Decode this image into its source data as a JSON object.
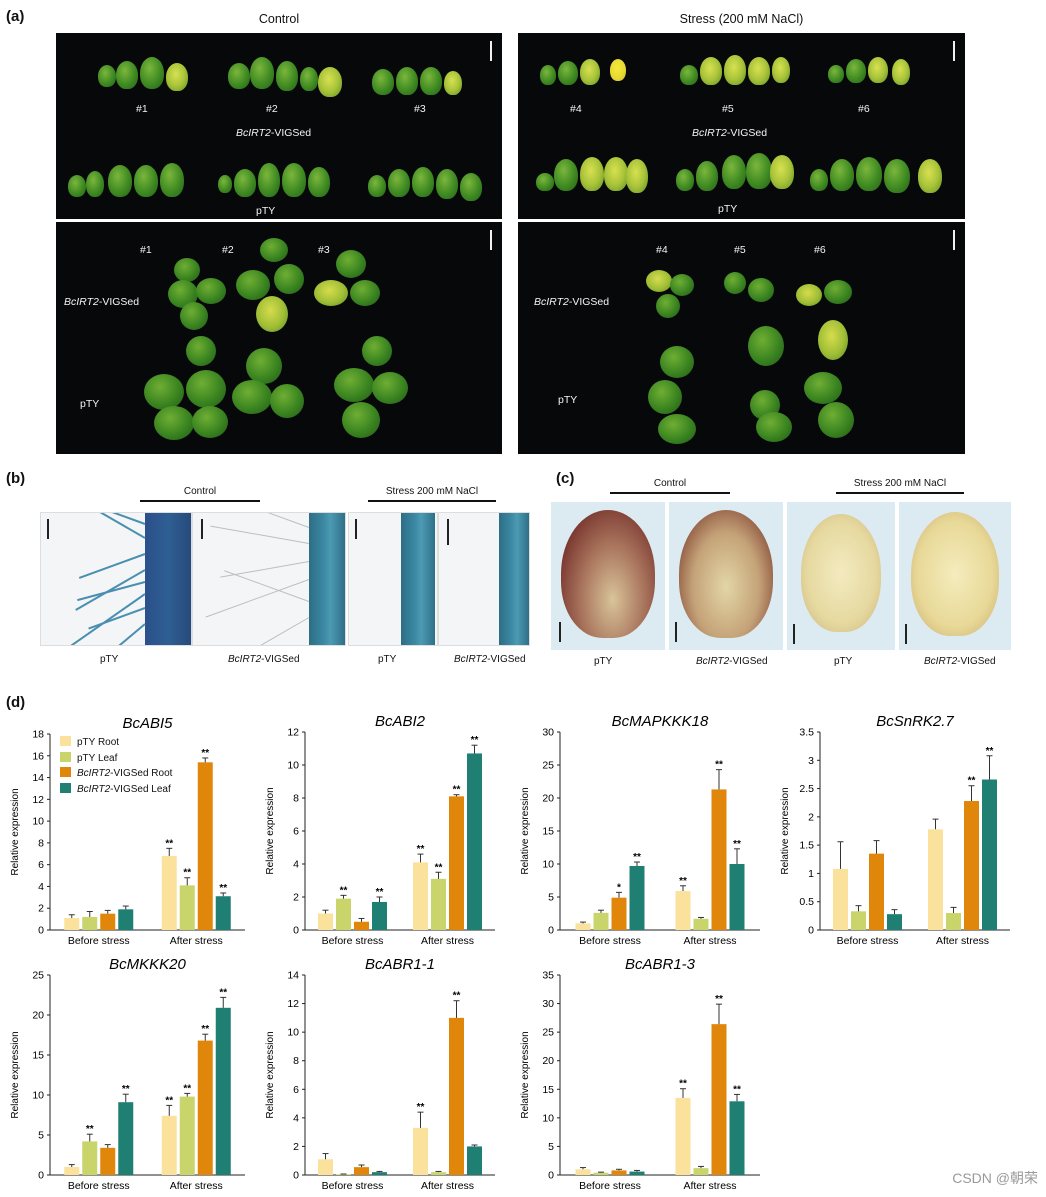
{
  "panel_a": {
    "letter": "(a)",
    "header_control": "Control",
    "header_stress": "Stress (200 mM NaCl)",
    "upper_left_ids": [
      "#1",
      "#2",
      "#3"
    ],
    "upper_right_ids": [
      "#4",
      "#5",
      "#6"
    ],
    "lower_left_ids": [
      "#1",
      "#2",
      "#3"
    ],
    "lower_right_ids": [
      "#4",
      "#5",
      "#6"
    ],
    "vigs_gene": "BcIRT2",
    "vigs_suffix": "-VIGSed",
    "ptY": "pTY"
  },
  "panel_b": {
    "letter": "(b)",
    "header_control": "Control",
    "header_stress": "Stress  200 mM NaCl",
    "labels": [
      "pTY",
      "BcIRT2",
      "-VIGSed",
      "pTY",
      "BcIRT2",
      "-VIGSed"
    ]
  },
  "panel_c": {
    "letter": "(c)",
    "header_control": "Control",
    "header_stress": "Stress  200 mM NaCl",
    "labels": [
      "pTY",
      "BcIRT2",
      "-VIGSed",
      "pTY",
      "BcIRT2",
      "-VIGSed"
    ]
  },
  "panel_d": {
    "letter": "(d)",
    "legend": [
      "pTY Root",
      "pTY Leaf",
      "BcIRT2-VIGSed Root",
      "BcIRT2-VIGSed Leaf"
    ],
    "legend_gene": "BcIRT2",
    "legend_suffix_root": "-VIGSed Root",
    "legend_suffix_leaf": "-VIGSed Leaf",
    "colors": [
      "#fbe29c",
      "#c9d46b",
      "#e0870b",
      "#1f7f73"
    ],
    "watermark": "CSDN @朝荣"
  },
  "chart_data": [
    {
      "type": "bar",
      "title": "BcABI5",
      "ylabel": "Relative expression",
      "categories": [
        "Before stress",
        "After stress"
      ],
      "ylim": [
        0,
        18
      ],
      "yticks": [
        "0",
        "2",
        "4",
        "6",
        "8",
        "10",
        "12",
        "14",
        "16",
        "18"
      ],
      "series": [
        {
          "name": "pTY Root",
          "values": [
            1.1,
            6.8
          ],
          "errors": [
            0.3,
            0.7
          ],
          "sig": [
            "",
            "**"
          ]
        },
        {
          "name": "pTY Leaf",
          "values": [
            1.2,
            4.1
          ],
          "errors": [
            0.5,
            0.7
          ],
          "sig": [
            "",
            "**"
          ]
        },
        {
          "name": "BcIRT2-VIGSed Root",
          "values": [
            1.5,
            15.4
          ],
          "errors": [
            0.3,
            0.4
          ],
          "sig": [
            "",
            "**"
          ]
        },
        {
          "name": "BcIRT2-VIGSed Leaf",
          "values": [
            1.9,
            3.1
          ],
          "errors": [
            0.3,
            0.3
          ],
          "sig": [
            "",
            "**"
          ]
        }
      ]
    },
    {
      "type": "bar",
      "title": "BcABI2",
      "ylabel": "Relative expression",
      "categories": [
        "Before stress",
        "After stress"
      ],
      "ylim": [
        0,
        12
      ],
      "yticks": [
        "0",
        "2",
        "4",
        "6",
        "8",
        "10",
        "12"
      ],
      "series": [
        {
          "name": "pTY Root",
          "values": [
            1.0,
            4.1
          ],
          "errors": [
            0.2,
            0.5
          ],
          "sig": [
            "",
            "**"
          ]
        },
        {
          "name": "pTY Leaf",
          "values": [
            1.9,
            3.1
          ],
          "errors": [
            0.2,
            0.4
          ],
          "sig": [
            "**",
            "**"
          ]
        },
        {
          "name": "BcIRT2-VIGSed Root",
          "values": [
            0.5,
            8.1
          ],
          "errors": [
            0.2,
            0.1
          ],
          "sig": [
            "",
            "**"
          ]
        },
        {
          "name": "BcIRT2-VIGSed Leaf",
          "values": [
            1.7,
            10.7
          ],
          "errors": [
            0.3,
            0.5
          ],
          "sig": [
            "**",
            "**"
          ]
        }
      ]
    },
    {
      "type": "bar",
      "title": "BcMAPKKK18",
      "ylabel": "Relative expression",
      "categories": [
        "Before stress",
        "After stress"
      ],
      "ylim": [
        0,
        30
      ],
      "yticks": [
        "0",
        "5",
        "10",
        "15",
        "20",
        "25",
        "30"
      ],
      "series": [
        {
          "name": "pTY Root",
          "values": [
            1.0,
            5.9
          ],
          "errors": [
            0.2,
            0.8
          ],
          "sig": [
            "",
            "**"
          ]
        },
        {
          "name": "pTY Leaf",
          "values": [
            2.6,
            1.7
          ],
          "errors": [
            0.4,
            0.2
          ],
          "sig": [
            "",
            ""
          ]
        },
        {
          "name": "BcIRT2-VIGSed Root",
          "values": [
            4.9,
            21.3
          ],
          "errors": [
            0.8,
            3.0
          ],
          "sig": [
            "*",
            "**"
          ]
        },
        {
          "name": "BcIRT2-VIGSed Leaf",
          "values": [
            9.7,
            10.0
          ],
          "errors": [
            0.6,
            2.3
          ],
          "sig": [
            "**",
            "**"
          ]
        }
      ]
    },
    {
      "type": "bar",
      "title": "BcSnRK2.7",
      "ylabel": "Relative expression",
      "categories": [
        "Before stress",
        "After stress"
      ],
      "ylim": [
        0,
        3.5
      ],
      "yticks": [
        "0",
        "0.5",
        "1",
        "1.5",
        "2",
        "2.5",
        "3",
        "3.5"
      ],
      "series": [
        {
          "name": "pTY Root",
          "values": [
            1.08,
            1.78
          ],
          "errors": [
            0.48,
            0.18
          ],
          "sig": [
            "",
            ""
          ]
        },
        {
          "name": "pTY Leaf",
          "values": [
            0.33,
            0.3
          ],
          "errors": [
            0.1,
            0.1
          ],
          "sig": [
            "",
            ""
          ]
        },
        {
          "name": "BcIRT2-VIGSed Root",
          "values": [
            1.35,
            2.28
          ],
          "errors": [
            0.23,
            0.27
          ],
          "sig": [
            "",
            "**"
          ]
        },
        {
          "name": "BcIRT2-VIGSed Leaf",
          "values": [
            0.28,
            2.66
          ],
          "errors": [
            0.08,
            0.42
          ],
          "sig": [
            "",
            "**"
          ]
        }
      ]
    },
    {
      "type": "bar",
      "title": "BcMKKK20",
      "ylabel": "Relative expression",
      "categories": [
        "Before stress",
        "After stress"
      ],
      "ylim": [
        0,
        25
      ],
      "yticks": [
        "0",
        "5",
        "10",
        "15",
        "20",
        "25"
      ],
      "series": [
        {
          "name": "pTY Root",
          "values": [
            1.0,
            7.4
          ],
          "errors": [
            0.3,
            1.3
          ],
          "sig": [
            "",
            "**"
          ]
        },
        {
          "name": "pTY Leaf",
          "values": [
            4.2,
            9.8
          ],
          "errors": [
            0.9,
            0.4
          ],
          "sig": [
            "**",
            "**"
          ]
        },
        {
          "name": "BcIRT2-VIGSed Root",
          "values": [
            3.4,
            16.8
          ],
          "errors": [
            0.4,
            0.8
          ],
          "sig": [
            "",
            "**"
          ]
        },
        {
          "name": "BcIRT2-VIGSed Leaf",
          "values": [
            9.1,
            20.9
          ],
          "errors": [
            1.0,
            1.3
          ],
          "sig": [
            "**",
            "**"
          ]
        }
      ]
    },
    {
      "type": "bar",
      "title": "BcABR1-1",
      "ylabel": "Relative expression",
      "categories": [
        "Before stress",
        "After stress"
      ],
      "ylim": [
        0,
        14
      ],
      "yticks": [
        "0",
        "2",
        "4",
        "6",
        "8",
        "10",
        "12",
        "14"
      ],
      "series": [
        {
          "name": "pTY Root",
          "values": [
            1.1,
            3.3
          ],
          "errors": [
            0.4,
            1.1
          ],
          "sig": [
            "",
            "**"
          ]
        },
        {
          "name": "pTY Leaf",
          "values": [
            0.05,
            0.2
          ],
          "errors": [
            0.02,
            0.05
          ],
          "sig": [
            "",
            ""
          ]
        },
        {
          "name": "BcIRT2-VIGSed Root",
          "values": [
            0.55,
            11.0
          ],
          "errors": [
            0.15,
            1.2
          ],
          "sig": [
            "",
            "**"
          ]
        },
        {
          "name": "BcIRT2-VIGSed Leaf",
          "values": [
            0.2,
            2.0
          ],
          "errors": [
            0.05,
            0.1
          ],
          "sig": [
            "",
            ""
          ]
        }
      ]
    },
    {
      "type": "bar",
      "title": "BcABR1-3",
      "ylabel": "Relative expression",
      "categories": [
        "Before stress",
        "After stress"
      ],
      "ylim": [
        0,
        35
      ],
      "yticks": [
        "0",
        "5",
        "10",
        "15",
        "20",
        "25",
        "30",
        "35"
      ],
      "series": [
        {
          "name": "pTY Root",
          "values": [
            1.0,
            13.5
          ],
          "errors": [
            0.3,
            1.6
          ],
          "sig": [
            "",
            "**"
          ]
        },
        {
          "name": "pTY Leaf",
          "values": [
            0.4,
            1.2
          ],
          "errors": [
            0.1,
            0.3
          ],
          "sig": [
            "",
            ""
          ]
        },
        {
          "name": "BcIRT2-VIGSed Root",
          "values": [
            0.8,
            26.4
          ],
          "errors": [
            0.2,
            3.5
          ],
          "sig": [
            "",
            "**"
          ]
        },
        {
          "name": "BcIRT2-VIGSed Leaf",
          "values": [
            0.6,
            12.9
          ],
          "errors": [
            0.2,
            1.2
          ],
          "sig": [
            "",
            "**"
          ]
        }
      ]
    }
  ]
}
